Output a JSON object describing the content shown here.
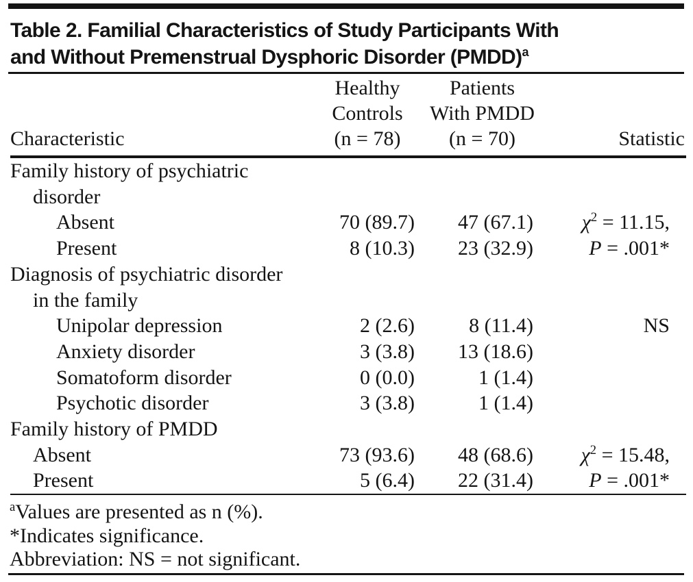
{
  "colors": {
    "background": "#ffffff",
    "text": "#141414",
    "rule": "#141414"
  },
  "title": {
    "line1": "Table 2. Familial Characteristics of Study Participants With",
    "line2": "and Without Premenstrual Dysphoric Disorder (PMDD)",
    "superscript": "a"
  },
  "table": {
    "headers": {
      "col1": "Characteristic",
      "col2": [
        "Healthy",
        "Controls",
        "(n = 78)"
      ],
      "col3": [
        "Patients",
        "With PMDD",
        "(n = 70)"
      ],
      "col4": "Statistic"
    },
    "rows": [
      {
        "label": "Family history of psychiatric"
      },
      {
        "label": "disorder"
      },
      {
        "label": "Absent",
        "c1": "70 (89.7)",
        "c2": "47 (67.1)",
        "stat_pre": "χ",
        "stat_sup": "2",
        "stat_post": " = 11.15,"
      },
      {
        "label": "Present",
        "c1": "8 (10.3)",
        "c2": "23 (32.9)",
        "stat_pre": "P",
        "stat_post": " = .001*"
      },
      {
        "label": "Diagnosis of psychiatric disorder"
      },
      {
        "label": "in the family"
      },
      {
        "label": "Unipolar depression",
        "c1": "2 (2.6)",
        "c2": "8 (11.4)",
        "stat_post": "NS"
      },
      {
        "label": "Anxiety disorder",
        "c1": "3 (3.8)",
        "c2": "13 (18.6)"
      },
      {
        "label": "Somatoform disorder",
        "c1": "0 (0.0)",
        "c2": "1 (1.4)"
      },
      {
        "label": "Psychotic disorder",
        "c1": "3 (3.8)",
        "c2": "1 (1.4)"
      },
      {
        "label": "Family history of PMDD"
      },
      {
        "label": "Absent",
        "c1": "73 (93.6)",
        "c2": "48 (68.6)",
        "stat_pre": "χ",
        "stat_sup": "2",
        "stat_post": " = 15.48,"
      },
      {
        "label": "Present",
        "c1": "5 (6.4)",
        "c2": "22 (31.4)",
        "stat_pre": "P",
        "stat_post": " = .001*"
      }
    ]
  },
  "footnotes": [
    {
      "sup": "a",
      "text": "Values are presented as n (%)."
    },
    {
      "sup": "",
      "text": "*Indicates significance."
    },
    {
      "sup": "",
      "text": "Abbreviation: NS = not significant."
    }
  ]
}
